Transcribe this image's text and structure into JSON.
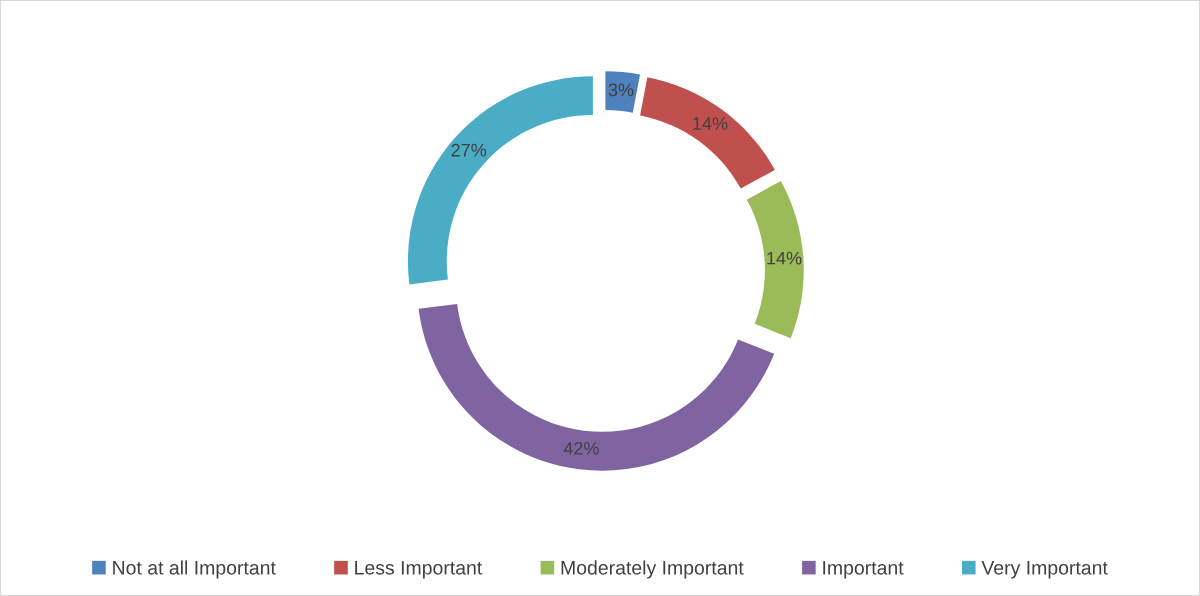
{
  "chart_data": {
    "type": "donut",
    "categories": [
      "Not at all Important",
      "Less Important",
      "Moderately Important",
      "Important",
      "Very Important"
    ],
    "values": [
      3,
      14,
      14,
      42,
      27
    ],
    "colors": [
      "#4f81bd",
      "#c0504d",
      "#9bbb59",
      "#8064a2",
      "#4bacc6"
    ],
    "value_labels": [
      "3%",
      "14%",
      "14%",
      "42%",
      "27%"
    ],
    "legend": "bottom"
  }
}
